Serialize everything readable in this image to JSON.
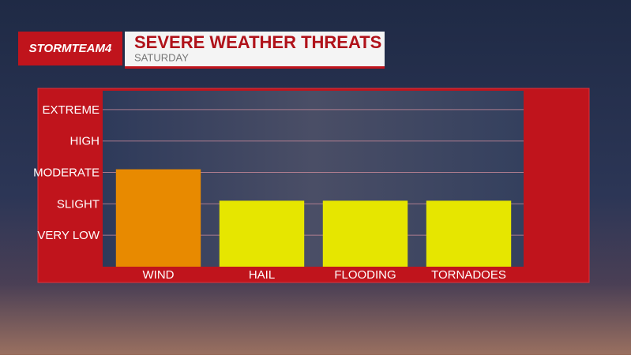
{
  "brand": "STORMTEAM4",
  "chart_data": {
    "type": "bar",
    "title": "SEVERE WEATHER THREATS",
    "subtitle": "SATURDAY",
    "categories": [
      "WIND",
      "HAIL",
      "FLOODING",
      "TORNADOES"
    ],
    "values": [
      3.1,
      2.1,
      2.1,
      2.1
    ],
    "colors": [
      "#e88a00",
      "#e6e600",
      "#e6e600",
      "#e6e600"
    ],
    "ylim": [
      0,
      5.6
    ],
    "yticks": [
      {
        "value": 1,
        "label": "VERY LOW"
      },
      {
        "value": 2,
        "label": "SLIGHT"
      },
      {
        "value": 3,
        "label": "MODERATE"
      },
      {
        "value": 4,
        "label": "HIGH"
      },
      {
        "value": 5,
        "label": "EXTREME"
      }
    ],
    "grid": true
  }
}
